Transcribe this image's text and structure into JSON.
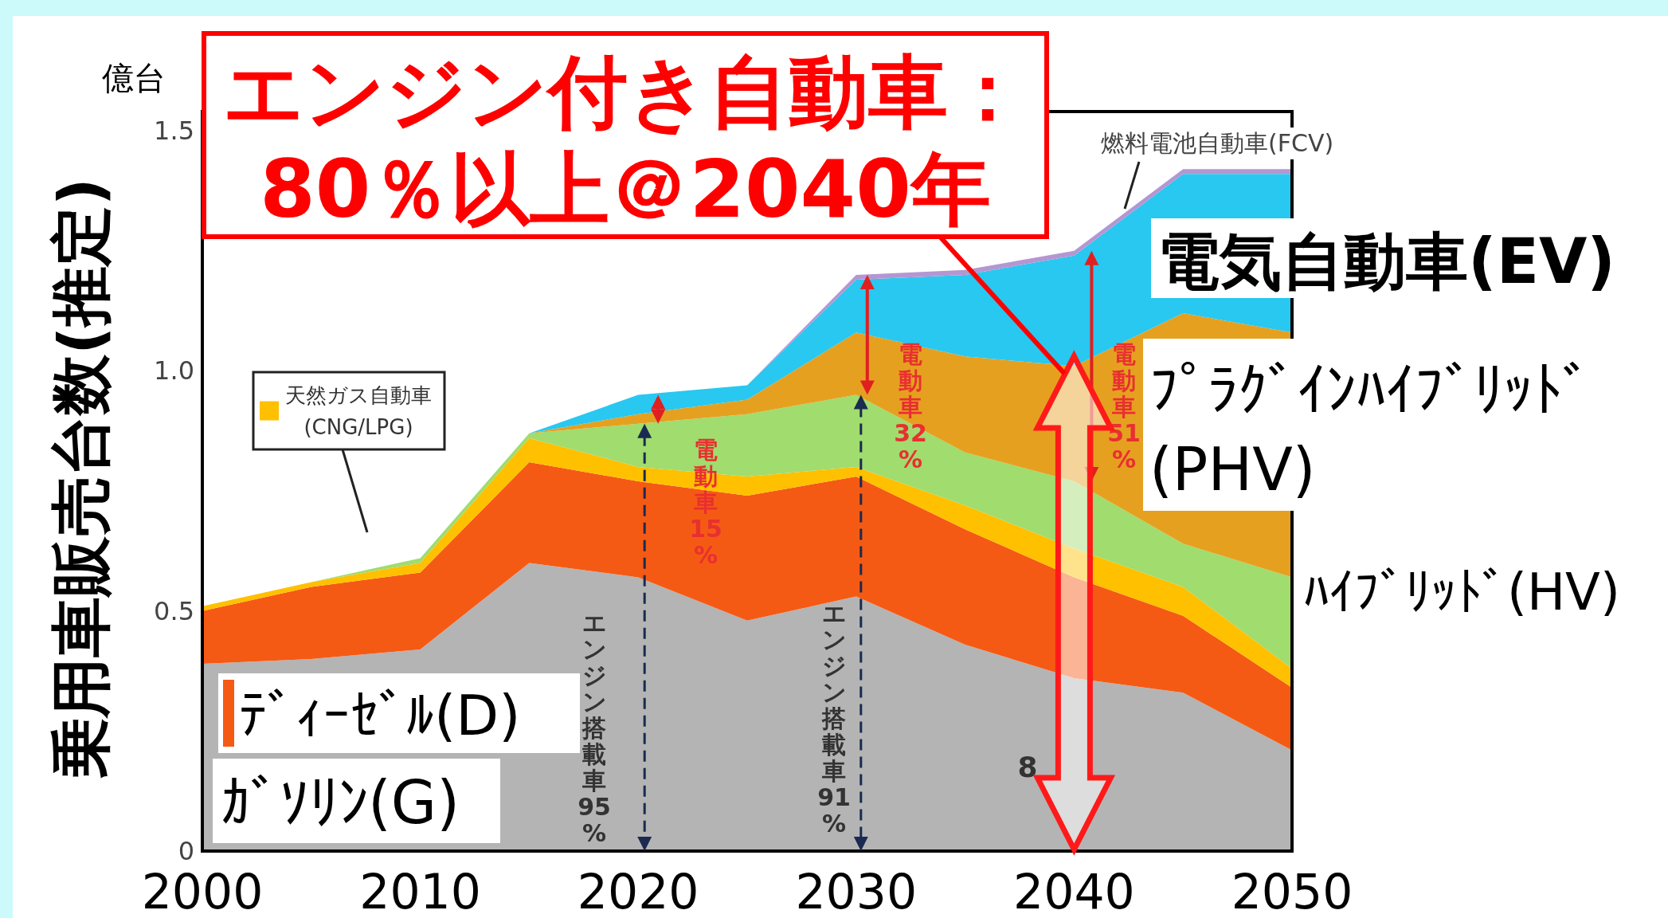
{
  "chart_data": {
    "type": "area",
    "stacked": true,
    "title": "エンジン付き自動車：",
    "subtitle": "80％以上＠2040年",
    "ylabel": "乗用車販売台数(推定)",
    "annotations": [
      "億台",
      "エンジン搭載車95%",
      "電動車15%",
      "エンジン搭載車91%",
      "電動車32%",
      "電動車51%",
      "8"
    ],
    "x": [
      2000,
      2005,
      2010,
      2015,
      2020,
      2025,
      2030,
      2035,
      2040,
      2045,
      2050
    ],
    "series": [
      {
        "name": "ｶﾞｿﾘﾝ(G)",
        "color": "#b4b4b4",
        "values": [
          0.39,
          0.4,
          0.42,
          0.6,
          0.57,
          0.48,
          0.53,
          0.43,
          0.36,
          0.33,
          0.21
        ]
      },
      {
        "name": "ﾃﾞｨｰｾﾞﾙ(D)",
        "color": "#f55a14",
        "values": [
          0.11,
          0.15,
          0.16,
          0.21,
          0.2,
          0.26,
          0.25,
          0.24,
          0.21,
          0.16,
          0.13
        ]
      },
      {
        "name": "天然ガス自動車\n(CNG/LPG)",
        "color": "#ffc000",
        "values": [
          0.01,
          0.01,
          0.02,
          0.05,
          0.03,
          0.04,
          0.02,
          0.05,
          0.06,
          0.06,
          0.04
        ]
      },
      {
        "name": "ﾊｲﾌﾞﾘｯﾄﾞ(HV)",
        "color": "#a0dc6e",
        "values": [
          0,
          0,
          0.01,
          0.01,
          0.09,
          0.13,
          0.15,
          0.11,
          0.14,
          0.09,
          0.19
        ]
      },
      {
        "name": "ﾌﾟﾗｸﾞｲﾝﾊｲﾌﾞﾘｯﾄﾞ\n(PHV)",
        "color": "#e6a020",
        "values": [
          0,
          0,
          0,
          0,
          0.02,
          0.03,
          0.13,
          0.2,
          0.24,
          0.48,
          0.51
        ]
      },
      {
        "name": "電気自動車(EV)",
        "color": "#28c8f0",
        "values": [
          0,
          0,
          0,
          0,
          0.04,
          0.03,
          0.11,
          0.17,
          0.23,
          0.29,
          0.33
        ]
      },
      {
        "name": "燃料電池自動車(FCV)",
        "color": "#b496d2",
        "values": [
          0,
          0,
          0,
          0,
          0,
          0,
          0.01,
          0.01,
          0.01,
          0.01,
          0.01
        ]
      }
    ],
    "legend": "left",
    "xlim": [
      2000,
      2050
    ],
    "ylim": [
      0,
      1.54
    ],
    "xticks": [
      2000,
      2010,
      2020,
      2030,
      2040,
      2050
    ],
    "yticks": [
      0,
      0.5,
      {
        "value": 1,
        "label": "1.0"
      },
      1.5
    ]
  }
}
